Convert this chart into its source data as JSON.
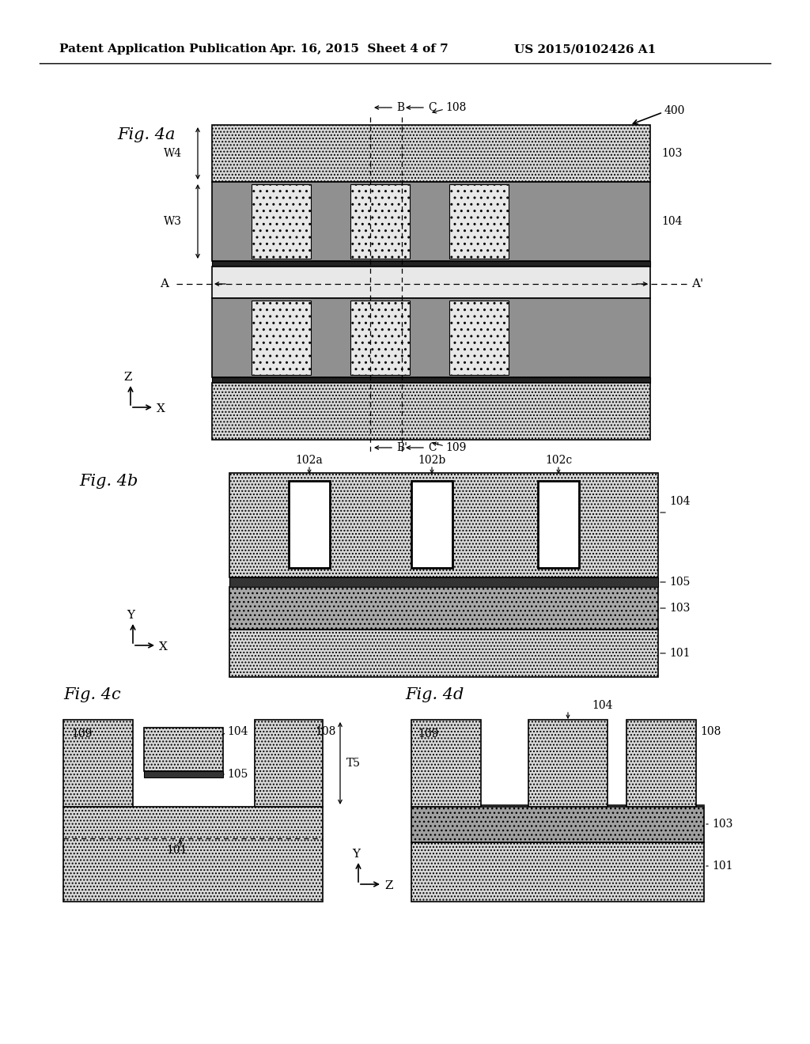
{
  "bg": "#ffffff",
  "header_left": "Patent Application Publication",
  "header_mid": "Apr. 16, 2015  Sheet 4 of 7",
  "header_right": "US 2015/0102426 A1",
  "col_dotted_light": "#d4d4d4",
  "col_dotted_medium": "#c0c0c0",
  "col_dark_gray": "#808080",
  "col_darker_gray": "#606060",
  "col_black_fill": "#333333",
  "col_white": "#ffffff",
  "col_substrate": "#d8d8d8"
}
